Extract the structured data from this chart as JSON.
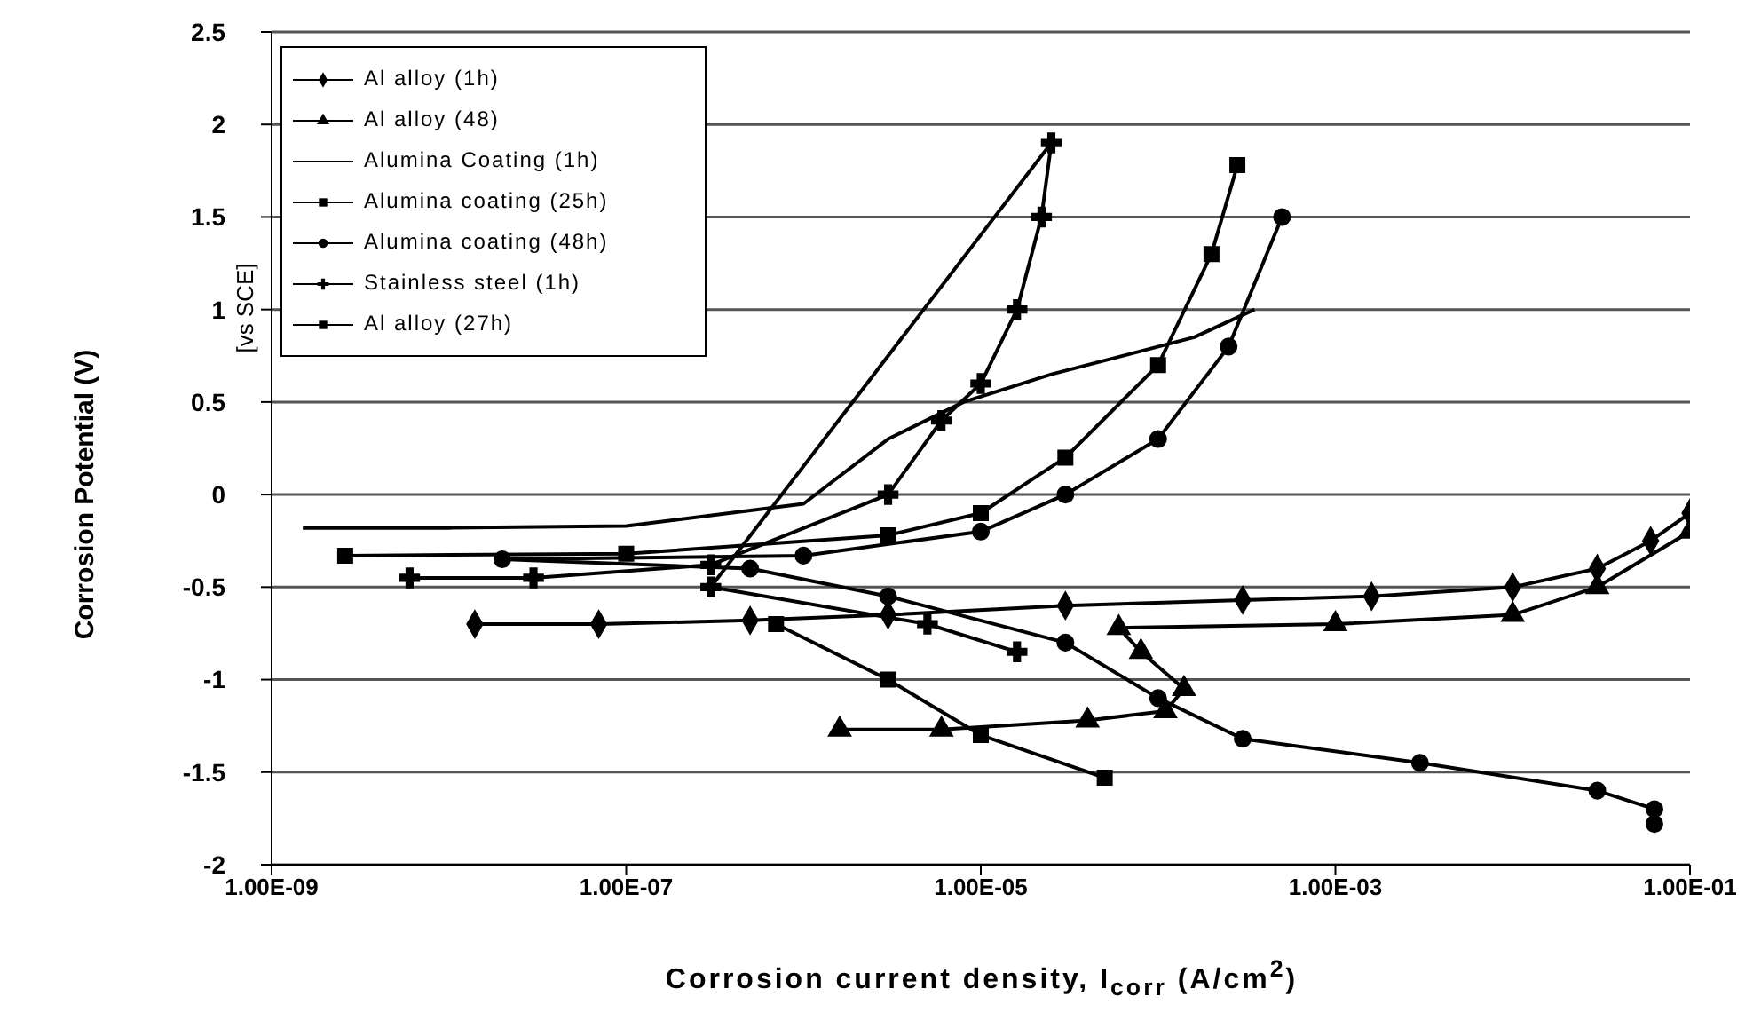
{
  "chart_data": {
    "type": "line",
    "xlabel": "Corrosion current density, I$_{corr}$ (A/cm$^{2}$)",
    "ylabel": "Corrosion Potential (V)",
    "annotations": [
      "[vs SCE]"
    ],
    "log": "x",
    "grid": "y",
    "legend": "top left",
    "xlim": [
      1e-09,
      0.1
    ],
    "xticks": [
      {
        "value": 1e-09,
        "label": "1.00E-09"
      },
      {
        "value": 1e-07,
        "label": "1.00E-07"
      },
      {
        "value": 1e-05,
        "label": "1.00E-05"
      },
      {
        "value": 0.001,
        "label": "1.00E-03"
      },
      {
        "value": 0.1,
        "label": "1.00E-01"
      }
    ],
    "ylim": [
      -2,
      2.5
    ],
    "yticks": [
      -2,
      -1.5,
      -1,
      -0.5,
      0,
      0.5,
      1,
      1.5,
      2,
      2.5
    ],
    "series": [
      {
        "name": "Al alloy (1h)",
        "color": "#000000",
        "marker": "diamond",
        "x": [
          1.4e-08,
          7e-08,
          5e-07,
          3e-06,
          3e-05,
          0.0003,
          0.0016,
          0.01,
          0.03,
          0.06,
          0.1
        ],
        "values": [
          -0.7,
          -0.7,
          -0.68,
          -0.65,
          -0.6,
          -0.57,
          -0.55,
          -0.5,
          -0.4,
          -0.25,
          -0.1
        ]
      },
      {
        "name": "Al alloy (48)",
        "color": "#000000",
        "marker": "triangle",
        "x": [
          0.1,
          0.03,
          0.01,
          0.001,
          6e-05,
          8e-05,
          0.00014,
          0.00011,
          4e-05,
          6e-06,
          1.6e-06
        ],
        "values": [
          -0.2,
          -0.5,
          -0.65,
          -0.7,
          -0.72,
          -0.85,
          -1.05,
          -1.17,
          -1.22,
          -1.27,
          -1.27
        ]
      },
      {
        "name": "Alumina Coating (1h)",
        "color": "#000000",
        "marker": "none",
        "x": [
          1.5e-09,
          1e-08,
          1e-07,
          1e-06,
          3e-06,
          8e-06,
          2.5e-05,
          0.00016,
          0.00035
        ],
        "values": [
          -0.18,
          -0.18,
          -0.17,
          -0.05,
          0.3,
          0.5,
          0.65,
          0.85,
          1
        ]
      },
      {
        "name": "Alumina coating (25h)",
        "color": "#000000",
        "marker": "square",
        "x": [
          2.6e-09,
          1e-07,
          3e-06,
          1e-05,
          3e-05,
          0.0001,
          0.0002,
          0.00028
        ],
        "values": [
          -0.33,
          -0.32,
          -0.22,
          -0.1,
          0.2,
          0.7,
          1.3,
          1.78
        ]
      },
      {
        "name": "Alumina coating (48h)",
        "color": "#000000",
        "marker": "circle",
        "x": [
          0.0005,
          0.00025,
          0.0001,
          3e-05,
          1e-05,
          1e-06,
          2e-08,
          5e-07,
          3e-06,
          3e-05,
          0.0001,
          0.0003,
          0.003,
          0.03,
          0.063,
          0.063
        ],
        "values": [
          1.5,
          0.8,
          0.3,
          0,
          -0.2,
          -0.33,
          -0.35,
          -0.4,
          -0.55,
          -0.8,
          -1.1,
          -1.32,
          -1.45,
          -1.6,
          -1.7,
          -1.78
        ]
      },
      {
        "name": "Stainless steel (1h)",
        "color": "#000000",
        "marker": "cross",
        "x": [
          6e-09,
          3e-08,
          3e-07,
          3e-06,
          6e-06,
          1e-05,
          1.6e-05,
          2.2e-05,
          2.5e-05,
          3e-07,
          5e-06,
          1.6e-05
        ],
        "values": [
          -0.45,
          -0.45,
          -0.38,
          0,
          0.4,
          0.6,
          1,
          1.5,
          1.9,
          -0.5,
          -0.7,
          -0.85
        ]
      },
      {
        "name": "Al alloy (27h)",
        "color": "#000000",
        "marker": "square",
        "x": [
          7e-07,
          3e-06,
          1e-05,
          5e-05
        ],
        "values": [
          -0.7,
          -1,
          -1.3,
          -1.53
        ]
      }
    ]
  }
}
